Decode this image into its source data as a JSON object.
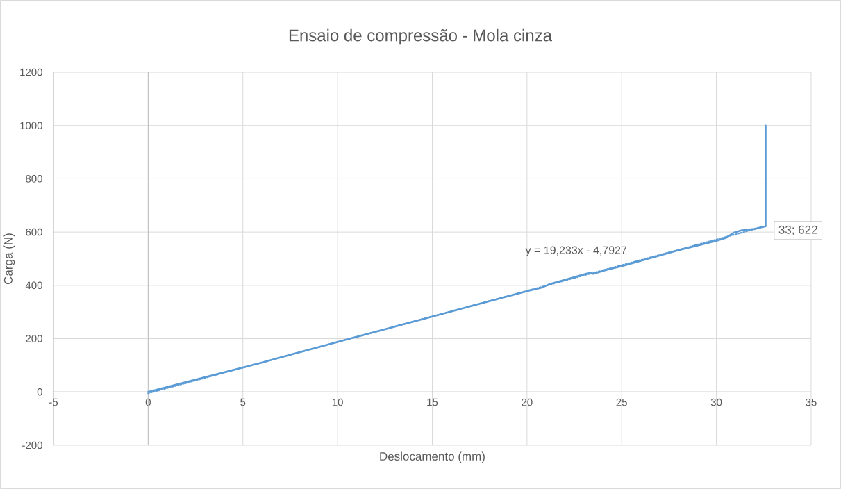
{
  "chart_data": {
    "type": "line",
    "title": "Ensaio de compressão - Mola cinza",
    "xlabel": "Deslocamento (mm)",
    "ylabel": "Carga (N)",
    "series": [
      {
        "color": "#5b9bd5",
        "line_style": "solid",
        "x": [
          0,
          2,
          5,
          6,
          7,
          10,
          15,
          18,
          20,
          20.8,
          21.2,
          23.3,
          23.5,
          24.3,
          25,
          28,
          30,
          30.5,
          30.9,
          31.3,
          32,
          32.6,
          32.6
        ],
        "values": [
          0,
          37,
          92,
          110,
          130,
          188,
          283,
          340,
          378,
          392,
          405,
          447,
          443,
          460,
          472,
          532,
          567,
          578,
          597,
          606,
          612,
          622,
          1000
        ]
      },
      {
        "type": "line",
        "color": "#5b9bd5",
        "line_style": "dotted",
        "x": [
          0,
          32.6
        ],
        "values": [
          -5,
          622
        ]
      }
    ],
    "annotations": [
      "y = 19,233x - 4,7927",
      {
        "text": "33; 622",
        "x": 32.6,
        "y": 622
      }
    ],
    "xlim": [
      -5,
      35
    ],
    "ylim": [
      -200,
      1200
    ],
    "xticks": [
      -5,
      0,
      5,
      10,
      15,
      20,
      25,
      30,
      35
    ],
    "yticks": [
      -200,
      0,
      200,
      400,
      600,
      800,
      1000,
      1200
    ],
    "grid": true,
    "marker": "none"
  }
}
